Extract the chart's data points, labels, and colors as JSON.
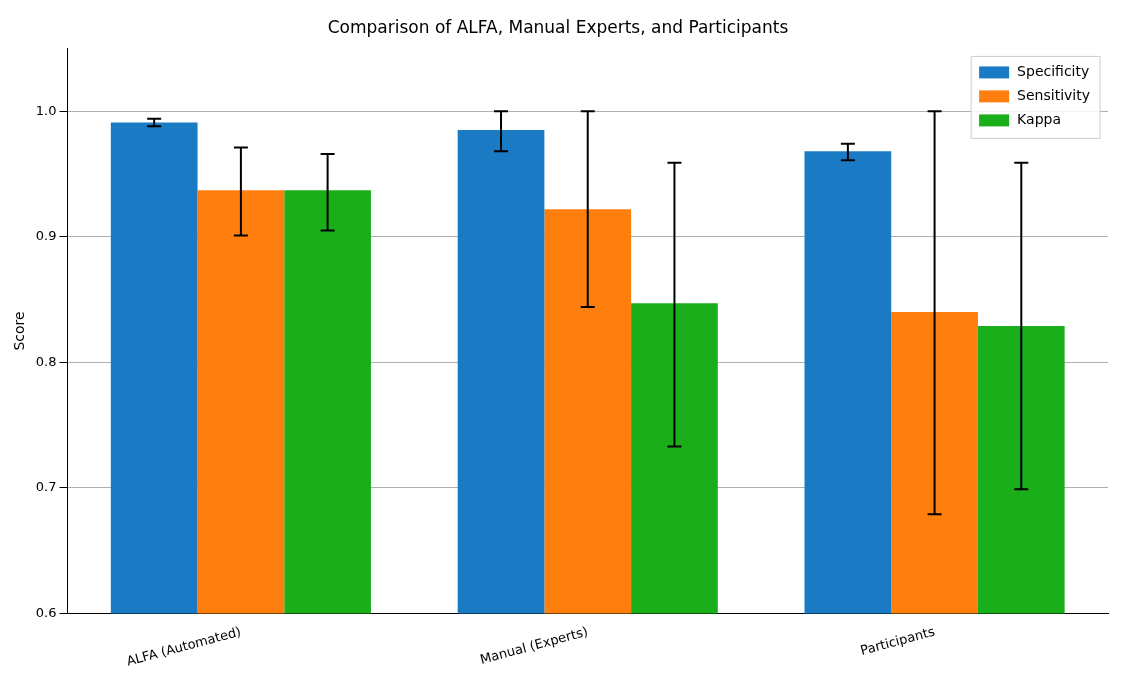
{
  "chart_data": {
    "type": "bar",
    "title": "Comparison of ALFA, Manual Experts, and Participants",
    "ylabel": "Score",
    "categories": [
      "ALFA (Automated)",
      "Manual (Experts)",
      "Participants"
    ],
    "series": [
      {
        "name": "Specificity",
        "color": "#1a7bc4",
        "values": [
          0.991,
          0.985,
          0.968
        ],
        "errors": [
          [
            0.988,
            0.994
          ],
          [
            0.968,
            1.0
          ],
          [
            0.961,
            0.974
          ]
        ]
      },
      {
        "name": "Sensitivity",
        "color": "#ff7f0e",
        "values": [
          0.937,
          0.922,
          0.84
        ],
        "errors": [
          [
            0.901,
            0.971
          ],
          [
            0.844,
            1.0
          ],
          [
            0.679,
            1.0
          ]
        ]
      },
      {
        "name": "Kappa",
        "color": "#1aaf1a",
        "values": [
          0.937,
          0.847,
          0.829
        ],
        "errors": [
          [
            0.905,
            0.966
          ],
          [
            0.733,
            0.959
          ],
          [
            0.699,
            0.959
          ]
        ]
      }
    ],
    "ylim": [
      0.6,
      1.05
    ],
    "yticks": [
      0.6,
      0.7,
      0.8,
      0.9,
      {
        "value": 1,
        "label": "1.0"
      }
    ],
    "grid": "y",
    "legend": "top right"
  }
}
